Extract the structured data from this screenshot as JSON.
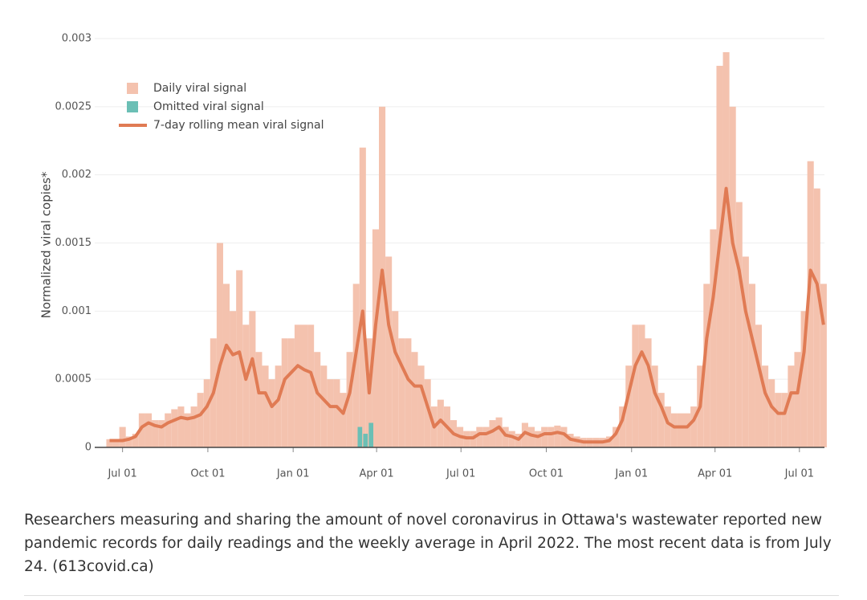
{
  "chart_data": {
    "type": "bar",
    "ylabel": "Normalized viral copies*",
    "x": [
      -14,
      -7,
      0,
      7,
      14,
      21,
      28,
      35,
      42,
      49,
      56,
      63,
      70,
      77,
      84,
      91,
      98,
      105,
      112,
      119,
      126,
      133,
      140,
      147,
      154,
      161,
      168,
      175,
      182,
      189,
      196,
      203,
      210,
      217,
      224,
      231,
      238,
      245,
      252,
      259,
      266,
      273,
      280,
      287,
      294,
      301,
      308,
      315,
      322,
      329,
      336,
      343,
      350,
      357,
      364,
      371,
      378,
      385,
      392,
      399,
      406,
      413,
      420,
      427,
      434,
      441,
      448,
      455,
      462,
      469,
      476,
      483,
      490,
      497,
      504,
      511,
      518,
      525,
      532,
      539,
      546,
      553,
      560,
      567,
      574,
      581,
      588,
      595,
      602,
      609,
      616,
      623,
      630,
      637,
      644,
      651,
      658,
      665,
      672,
      679,
      686,
      693,
      700,
      707,
      714,
      721,
      728,
      735,
      742,
      749,
      756
    ],
    "xlim": [
      -30,
      757
    ],
    "xticks": [
      {
        "value": 0,
        "label": "Jul 01"
      },
      {
        "value": 92,
        "label": "Oct 01"
      },
      {
        "value": 184,
        "label": "Jan 01"
      },
      {
        "value": 274,
        "label": "Apr 01"
      },
      {
        "value": 365,
        "label": "Jul 01"
      },
      {
        "value": 457,
        "label": "Oct 01"
      },
      {
        "value": 549,
        "label": "Jan 01"
      },
      {
        "value": 639,
        "label": "Apr 01"
      },
      {
        "value": 730,
        "label": "Jul 01"
      }
    ],
    "ylim": [
      0,
      0.003
    ],
    "yticks": [
      0,
      0.0005,
      0.001,
      0.0015,
      0.002,
      0.0025,
      0.003
    ],
    "grid": true,
    "legend": "upper left",
    "series": [
      {
        "name": "Daily viral signal",
        "type": "bar",
        "color": "#f4c2ae",
        "values": [
          6e-05,
          6e-05,
          0.00015,
          8e-05,
          0.0001,
          0.00025,
          0.00025,
          0.0002,
          0.0002,
          0.00025,
          0.00028,
          0.0003,
          0.00025,
          0.0003,
          0.0004,
          0.0005,
          0.0008,
          0.0015,
          0.0012,
          0.001,
          0.0013,
          0.0009,
          0.001,
          0.0007,
          0.0006,
          0.0005,
          0.0006,
          0.0008,
          0.0008,
          0.0009,
          0.0009,
          0.0009,
          0.0007,
          0.0006,
          0.0005,
          0.0005,
          0.0004,
          0.0007,
          0.0012,
          0.0022,
          0.0008,
          0.0016,
          0.0025,
          0.0014,
          0.001,
          0.0008,
          0.0008,
          0.0007,
          0.0006,
          0.0005,
          0.0003,
          0.00035,
          0.0003,
          0.0002,
          0.00015,
          0.00012,
          0.00012,
          0.00015,
          0.00015,
          0.0002,
          0.00022,
          0.00015,
          0.00012,
          0.0001,
          0.00018,
          0.00015,
          0.00012,
          0.00015,
          0.00015,
          0.00016,
          0.00015,
          0.0001,
          8e-05,
          7e-05,
          7e-05,
          7e-05,
          7e-05,
          8e-05,
          0.00015,
          0.0003,
          0.0006,
          0.0009,
          0.0009,
          0.0008,
          0.0006,
          0.0004,
          0.0003,
          0.00025,
          0.00025,
          0.00025,
          0.0003,
          0.0006,
          0.0012,
          0.0016,
          0.0028,
          0.0029,
          0.0025,
          0.0018,
          0.0014,
          0.0012,
          0.0009,
          0.0006,
          0.0005,
          0.0004,
          0.0004,
          0.0006,
          0.0007,
          0.001,
          0.0021,
          0.0019,
          0.0012
        ]
      },
      {
        "name": "Omitted viral signal",
        "type": "bar",
        "color": "#6bbfb5",
        "x": [
          256,
          262,
          268
        ],
        "values": [
          0.00015,
          0.0001,
          0.00018
        ]
      },
      {
        "name": "7-day rolling mean viral signal",
        "type": "line",
        "color": "#e07b54",
        "values": [
          5e-05,
          5e-05,
          5e-05,
          6e-05,
          8e-05,
          0.00015,
          0.00018,
          0.00016,
          0.00015,
          0.00018,
          0.0002,
          0.00022,
          0.00021,
          0.00022,
          0.00024,
          0.0003,
          0.0004,
          0.0006,
          0.00075,
          0.00068,
          0.0007,
          0.0005,
          0.00065,
          0.0004,
          0.0004,
          0.0003,
          0.00035,
          0.0005,
          0.00055,
          0.0006,
          0.00057,
          0.00055,
          0.0004,
          0.00035,
          0.0003,
          0.0003,
          0.00025,
          0.0004,
          0.0007,
          0.001,
          0.0004,
          0.0009,
          0.0013,
          0.0009,
          0.0007,
          0.0006,
          0.0005,
          0.00045,
          0.00045,
          0.0003,
          0.00015,
          0.0002,
          0.00015,
          0.0001,
          8e-05,
          7e-05,
          7e-05,
          0.0001,
          0.0001,
          0.00012,
          0.00015,
          9e-05,
          8e-05,
          6e-05,
          0.00011,
          9e-05,
          8e-05,
          0.0001,
          0.0001,
          0.00011,
          0.0001,
          6e-05,
          5e-05,
          4e-05,
          4e-05,
          4e-05,
          4e-05,
          5e-05,
          0.0001,
          0.0002,
          0.0004,
          0.0006,
          0.0007,
          0.0006,
          0.0004,
          0.0003,
          0.00018,
          0.00015,
          0.00015,
          0.00015,
          0.0002,
          0.0003,
          0.0008,
          0.0011,
          0.0015,
          0.0019,
          0.0015,
          0.0013,
          0.001,
          0.0008,
          0.0006,
          0.0004,
          0.0003,
          0.00025,
          0.00025,
          0.0004,
          0.0004,
          0.0007,
          0.0013,
          0.0012,
          0.0009
        ]
      }
    ]
  },
  "caption": "Researchers measuring and sharing the amount of novel coronavirus in Ottawa's wastewater reported new pandemic records for daily readings and the weekly average in April 2022. The most recent data is from July 24. (613covid.ca)"
}
